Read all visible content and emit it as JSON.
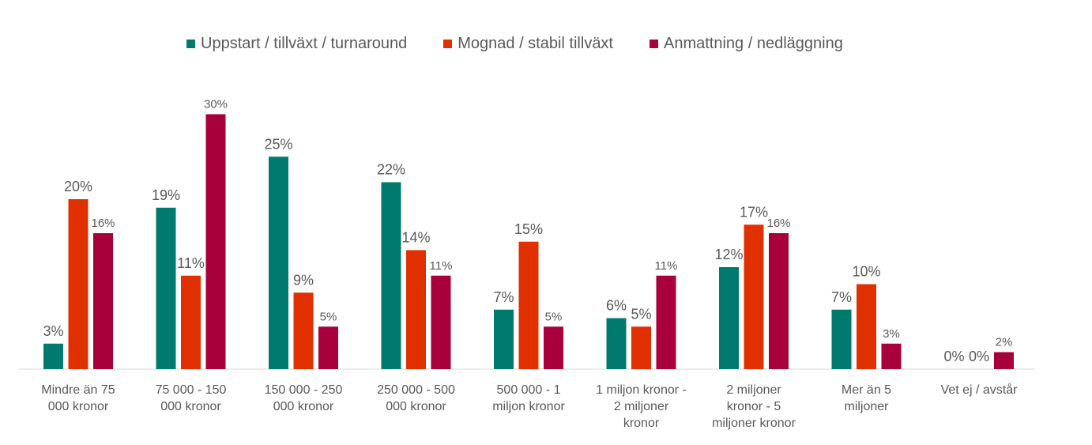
{
  "chart_data": {
    "type": "bar",
    "title": "",
    "xlabel": "",
    "ylabel": "",
    "ylim": [
      0,
      30
    ],
    "grid": false,
    "legend_position": "top",
    "categories": [
      [
        "Mindre än 75",
        "000 kronor"
      ],
      [
        "75 000 - 150",
        "000 kronor"
      ],
      [
        "150 000 - 250",
        "000 kronor"
      ],
      [
        "250 000 - 500",
        "000 kronor"
      ],
      [
        "500 000 - 1",
        "miljon kronor"
      ],
      [
        "1 miljon kronor -",
        "2 miljoner",
        "kronor"
      ],
      [
        "2 miljoner",
        "kronor - 5",
        "miljoner kronor"
      ],
      [
        "Mer än 5",
        "miljoner"
      ],
      [
        "Vet ej / avstår"
      ]
    ],
    "series": [
      {
        "name": "Uppstart / tillväxt / turnaround",
        "color": "#007A6E",
        "values": [
          3,
          19,
          25,
          22,
          7,
          6,
          12,
          7,
          0
        ],
        "labels": [
          "3%",
          "19%",
          "25%",
          "22%",
          "7%",
          "6%",
          "12%",
          "7%",
          "0%"
        ]
      },
      {
        "name": "Mognad / stabil tillväxt",
        "color": "#E03000",
        "values": [
          20,
          11,
          9,
          14,
          15,
          5,
          17,
          10,
          0
        ],
        "labels": [
          "20%",
          "11%",
          "9%",
          "14%",
          "15%",
          "5%",
          "17%",
          "10%",
          "0%"
        ]
      },
      {
        "name": "Anmattning / nedläggning",
        "color": "#A8003B",
        "values": [
          16,
          30,
          5,
          11,
          5,
          11,
          16,
          3,
          2
        ],
        "labels": [
          "16%",
          "30%",
          "5%",
          "11%",
          "5%",
          "11%",
          "16%",
          "3%",
          "2%"
        ]
      }
    ]
  }
}
